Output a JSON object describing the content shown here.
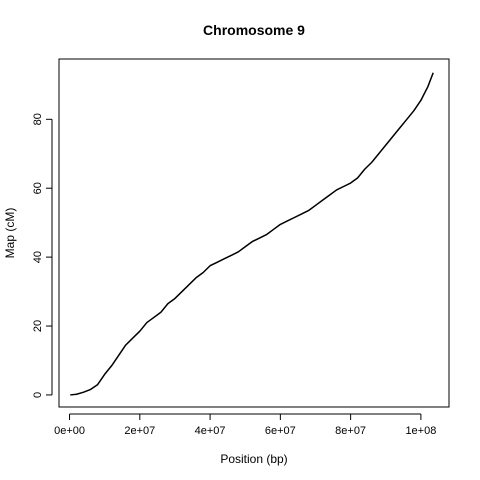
{
  "chart_data": {
    "type": "line",
    "title": "Chromosome 9",
    "xlabel": "Position (bp)",
    "ylabel": "Map (cM)",
    "xlim": [
      -3000000,
      108000000
    ],
    "ylim": [
      -3.5,
      97.5
    ],
    "x_ticks": [
      0,
      20000000,
      40000000,
      60000000,
      80000000,
      100000000
    ],
    "x_tick_labels": [
      "0e+00",
      "2e+07",
      "4e+07",
      "6e+07",
      "8e+07",
      "1e+08"
    ],
    "y_ticks": [
      0,
      20,
      40,
      60,
      80
    ],
    "y_tick_labels": [
      "0",
      "20",
      "40",
      "60",
      "80"
    ],
    "grid": false,
    "line_color": "#000000",
    "series": [
      {
        "x": [
          200000,
          2000000,
          4000000,
          6000000,
          8000000,
          10000000,
          12000000,
          14000000,
          16000000,
          18000000,
          20000000,
          22000000,
          24000000,
          26000000,
          28000000,
          30000000,
          32000000,
          34000000,
          36000000,
          38000000,
          40000000,
          42000000,
          44000000,
          46000000,
          48000000,
          50000000,
          52000000,
          54000000,
          56000000,
          58000000,
          60000000,
          62000000,
          64000000,
          66000000,
          68000000,
          70000000,
          72000000,
          74000000,
          76000000,
          78000000,
          80000000,
          82000000,
          84000000,
          86000000,
          88000000,
          90000000,
          92000000,
          94000000,
          96000000,
          98000000,
          100000000,
          102000000,
          103500000
        ],
        "y": [
          0,
          0.2,
          0.8,
          1.6,
          3.0,
          6.0,
          8.5,
          11.5,
          14.5,
          16.5,
          18.5,
          21.0,
          22.5,
          24.0,
          26.5,
          28.0,
          30.0,
          32.0,
          34.0,
          35.5,
          37.5,
          38.5,
          39.5,
          40.5,
          41.5,
          43.0,
          44.5,
          45.5,
          46.5,
          48.0,
          49.5,
          50.5,
          51.5,
          52.5,
          53.5,
          55.0,
          56.5,
          58.0,
          59.5,
          60.5,
          61.5,
          63.0,
          65.5,
          67.5,
          70.0,
          72.5,
          75.0,
          77.5,
          80.0,
          82.5,
          85.5,
          89.5,
          93.5
        ]
      }
    ]
  }
}
